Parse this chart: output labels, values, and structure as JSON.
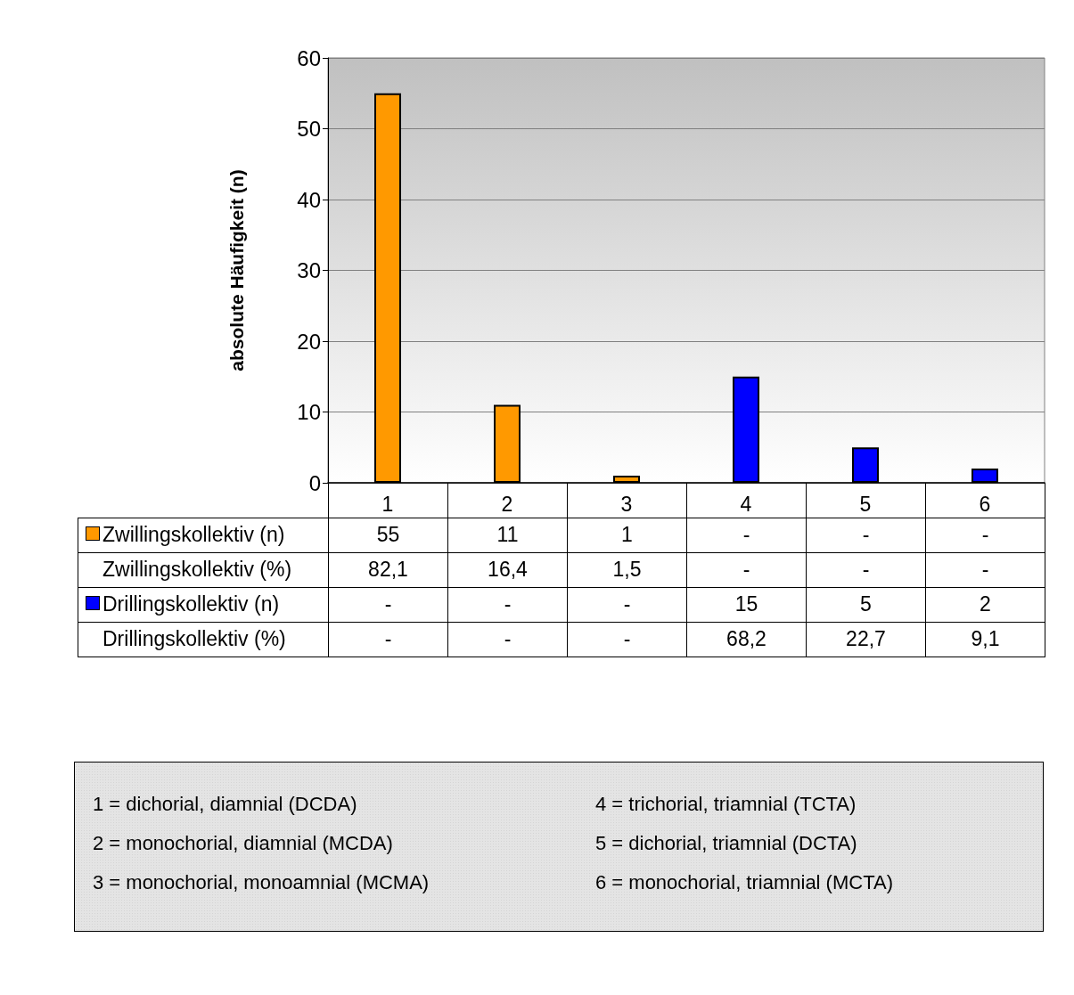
{
  "chart_data": {
    "type": "bar",
    "ylabel": "absolute Häufigkeit (n)",
    "categories": [
      "1",
      "2",
      "3",
      "4",
      "5",
      "6"
    ],
    "series": [
      {
        "name": "Zwillingskollektiv (n)",
        "color": "#ff9900",
        "values": [
          55,
          11,
          1,
          null,
          null,
          null
        ],
        "value_labels": [
          "55",
          "11",
          "1",
          "-",
          "-",
          "-"
        ]
      },
      {
        "name": "Drillingskollektiv (n)",
        "color": "#0000ff",
        "values": [
          null,
          null,
          null,
          15,
          5,
          2
        ],
        "value_labels": [
          "-",
          "-",
          "-",
          "15",
          "5",
          "2"
        ]
      }
    ],
    "ylim": [
      0,
      60
    ],
    "yticks": [
      0,
      10,
      20,
      30,
      40,
      50,
      60
    ],
    "grid": "y",
    "legend": "bottom",
    "annotations": [
      "Zwillingskollektiv (%)",
      "82,1",
      "16,4",
      "1,5",
      "-",
      "-",
      "-",
      "Drillingskollektiv (%)",
      "-",
      "-",
      "-",
      "68,2",
      "22,7",
      "9,1",
      "1 = dichorial, diamnial (DCDA)",
      "2 = monochorial, diamnial (MCDA)",
      "3 = monochorial, monoamnial (MCMA)",
      "4 = trichorial, triamnial (TCTA)",
      "5 = dichorial, triamnial (DCTA)",
      "6 = monochorial, triamnial (MCTA)"
    ]
  }
}
